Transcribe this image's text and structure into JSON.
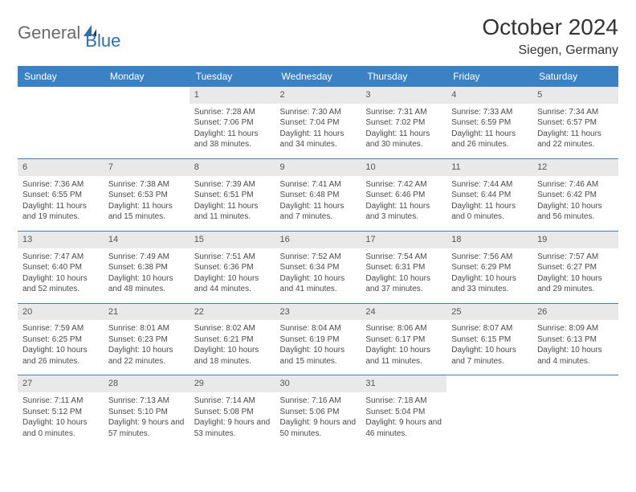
{
  "logo": {
    "part1": "General",
    "part2": "Blue"
  },
  "title": "October 2024",
  "location": "Siegen, Germany",
  "colors": {
    "header_bg": "#3b82c4",
    "header_text": "#ffffff",
    "daynum_bg": "#e9e9e9",
    "border": "#3b82c4",
    "logo_accent": "#2c6fb5",
    "logo_gray": "#6a6a6a"
  },
  "weekdays": [
    "Sunday",
    "Monday",
    "Tuesday",
    "Wednesday",
    "Thursday",
    "Friday",
    "Saturday"
  ],
  "weeks": [
    [
      {
        "n": "",
        "sunrise": "",
        "sunset": "",
        "daylight": ""
      },
      {
        "n": "",
        "sunrise": "",
        "sunset": "",
        "daylight": ""
      },
      {
        "n": "1",
        "sunrise": "Sunrise: 7:28 AM",
        "sunset": "Sunset: 7:06 PM",
        "daylight": "Daylight: 11 hours and 38 minutes."
      },
      {
        "n": "2",
        "sunrise": "Sunrise: 7:30 AM",
        "sunset": "Sunset: 7:04 PM",
        "daylight": "Daylight: 11 hours and 34 minutes."
      },
      {
        "n": "3",
        "sunrise": "Sunrise: 7:31 AM",
        "sunset": "Sunset: 7:02 PM",
        "daylight": "Daylight: 11 hours and 30 minutes."
      },
      {
        "n": "4",
        "sunrise": "Sunrise: 7:33 AM",
        "sunset": "Sunset: 6:59 PM",
        "daylight": "Daylight: 11 hours and 26 minutes."
      },
      {
        "n": "5",
        "sunrise": "Sunrise: 7:34 AM",
        "sunset": "Sunset: 6:57 PM",
        "daylight": "Daylight: 11 hours and 22 minutes."
      }
    ],
    [
      {
        "n": "6",
        "sunrise": "Sunrise: 7:36 AM",
        "sunset": "Sunset: 6:55 PM",
        "daylight": "Daylight: 11 hours and 19 minutes."
      },
      {
        "n": "7",
        "sunrise": "Sunrise: 7:38 AM",
        "sunset": "Sunset: 6:53 PM",
        "daylight": "Daylight: 11 hours and 15 minutes."
      },
      {
        "n": "8",
        "sunrise": "Sunrise: 7:39 AM",
        "sunset": "Sunset: 6:51 PM",
        "daylight": "Daylight: 11 hours and 11 minutes."
      },
      {
        "n": "9",
        "sunrise": "Sunrise: 7:41 AM",
        "sunset": "Sunset: 6:48 PM",
        "daylight": "Daylight: 11 hours and 7 minutes."
      },
      {
        "n": "10",
        "sunrise": "Sunrise: 7:42 AM",
        "sunset": "Sunset: 6:46 PM",
        "daylight": "Daylight: 11 hours and 3 minutes."
      },
      {
        "n": "11",
        "sunrise": "Sunrise: 7:44 AM",
        "sunset": "Sunset: 6:44 PM",
        "daylight": "Daylight: 11 hours and 0 minutes."
      },
      {
        "n": "12",
        "sunrise": "Sunrise: 7:46 AM",
        "sunset": "Sunset: 6:42 PM",
        "daylight": "Daylight: 10 hours and 56 minutes."
      }
    ],
    [
      {
        "n": "13",
        "sunrise": "Sunrise: 7:47 AM",
        "sunset": "Sunset: 6:40 PM",
        "daylight": "Daylight: 10 hours and 52 minutes."
      },
      {
        "n": "14",
        "sunrise": "Sunrise: 7:49 AM",
        "sunset": "Sunset: 6:38 PM",
        "daylight": "Daylight: 10 hours and 48 minutes."
      },
      {
        "n": "15",
        "sunrise": "Sunrise: 7:51 AM",
        "sunset": "Sunset: 6:36 PM",
        "daylight": "Daylight: 10 hours and 44 minutes."
      },
      {
        "n": "16",
        "sunrise": "Sunrise: 7:52 AM",
        "sunset": "Sunset: 6:34 PM",
        "daylight": "Daylight: 10 hours and 41 minutes."
      },
      {
        "n": "17",
        "sunrise": "Sunrise: 7:54 AM",
        "sunset": "Sunset: 6:31 PM",
        "daylight": "Daylight: 10 hours and 37 minutes."
      },
      {
        "n": "18",
        "sunrise": "Sunrise: 7:56 AM",
        "sunset": "Sunset: 6:29 PM",
        "daylight": "Daylight: 10 hours and 33 minutes."
      },
      {
        "n": "19",
        "sunrise": "Sunrise: 7:57 AM",
        "sunset": "Sunset: 6:27 PM",
        "daylight": "Daylight: 10 hours and 29 minutes."
      }
    ],
    [
      {
        "n": "20",
        "sunrise": "Sunrise: 7:59 AM",
        "sunset": "Sunset: 6:25 PM",
        "daylight": "Daylight: 10 hours and 26 minutes."
      },
      {
        "n": "21",
        "sunrise": "Sunrise: 8:01 AM",
        "sunset": "Sunset: 6:23 PM",
        "daylight": "Daylight: 10 hours and 22 minutes."
      },
      {
        "n": "22",
        "sunrise": "Sunrise: 8:02 AM",
        "sunset": "Sunset: 6:21 PM",
        "daylight": "Daylight: 10 hours and 18 minutes."
      },
      {
        "n": "23",
        "sunrise": "Sunrise: 8:04 AM",
        "sunset": "Sunset: 6:19 PM",
        "daylight": "Daylight: 10 hours and 15 minutes."
      },
      {
        "n": "24",
        "sunrise": "Sunrise: 8:06 AM",
        "sunset": "Sunset: 6:17 PM",
        "daylight": "Daylight: 10 hours and 11 minutes."
      },
      {
        "n": "25",
        "sunrise": "Sunrise: 8:07 AM",
        "sunset": "Sunset: 6:15 PM",
        "daylight": "Daylight: 10 hours and 7 minutes."
      },
      {
        "n": "26",
        "sunrise": "Sunrise: 8:09 AM",
        "sunset": "Sunset: 6:13 PM",
        "daylight": "Daylight: 10 hours and 4 minutes."
      }
    ],
    [
      {
        "n": "27",
        "sunrise": "Sunrise: 7:11 AM",
        "sunset": "Sunset: 5:12 PM",
        "daylight": "Daylight: 10 hours and 0 minutes."
      },
      {
        "n": "28",
        "sunrise": "Sunrise: 7:13 AM",
        "sunset": "Sunset: 5:10 PM",
        "daylight": "Daylight: 9 hours and 57 minutes."
      },
      {
        "n": "29",
        "sunrise": "Sunrise: 7:14 AM",
        "sunset": "Sunset: 5:08 PM",
        "daylight": "Daylight: 9 hours and 53 minutes."
      },
      {
        "n": "30",
        "sunrise": "Sunrise: 7:16 AM",
        "sunset": "Sunset: 5:06 PM",
        "daylight": "Daylight: 9 hours and 50 minutes."
      },
      {
        "n": "31",
        "sunrise": "Sunrise: 7:18 AM",
        "sunset": "Sunset: 5:04 PM",
        "daylight": "Daylight: 9 hours and 46 minutes."
      },
      {
        "n": "",
        "sunrise": "",
        "sunset": "",
        "daylight": ""
      },
      {
        "n": "",
        "sunrise": "",
        "sunset": "",
        "daylight": ""
      }
    ]
  ]
}
